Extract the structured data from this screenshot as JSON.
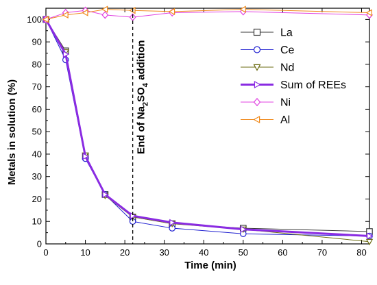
{
  "chart_data": {
    "type": "line",
    "xlabel": "Time (min)",
    "ylabel": "Metals in solution (%)",
    "xlim": [
      0,
      82
    ],
    "ylim": [
      0,
      105
    ],
    "xticks": [
      0,
      10,
      20,
      30,
      40,
      50,
      60,
      70,
      80
    ],
    "yticks": [
      0,
      10,
      20,
      30,
      40,
      50,
      60,
      70,
      80,
      90,
      100
    ],
    "grid": false,
    "legend_position": "top-right",
    "annotation": {
      "text_prefix": "End of Na",
      "sub1": "2",
      "text_mid": "SO",
      "sub2": "4",
      "text_suffix": " addition",
      "x": 22
    },
    "series": [
      {
        "name": "La",
        "color": "#3a3a3a",
        "marker": "square",
        "x": [
          0,
          5,
          10,
          15,
          22,
          32,
          50,
          82
        ],
        "y": [
          100,
          86,
          39,
          22,
          12,
          9,
          7,
          5.5
        ]
      },
      {
        "name": "Ce",
        "color": "#1f1fd0",
        "marker": "circle",
        "x": [
          0,
          5,
          10,
          15,
          22,
          32,
          50,
          82
        ],
        "y": [
          100,
          82,
          38,
          22,
          10,
          7,
          4.5,
          3.5
        ]
      },
      {
        "name": "Nd",
        "color": "#6b6b10",
        "marker": "triangle-down",
        "x": [
          0,
          5,
          10,
          15,
          22,
          32,
          50,
          82
        ],
        "y": [
          100,
          85.5,
          39.5,
          21.5,
          12,
          9,
          6.5,
          1
        ]
      },
      {
        "name": "Sum of REEs",
        "color": "#8a2be2",
        "marker": "triangle-right",
        "bold": true,
        "x": [
          0,
          5,
          10,
          15,
          22,
          32,
          50,
          82
        ],
        "y": [
          100,
          84.5,
          39,
          22,
          12.5,
          9.5,
          6.5,
          3.5
        ]
      },
      {
        "name": "Ni",
        "color": "#e040e0",
        "marker": "diamond",
        "x": [
          0,
          5,
          10,
          15,
          22,
          32,
          50,
          82
        ],
        "y": [
          100,
          103,
          104,
          102,
          101,
          103,
          103.5,
          102
        ]
      },
      {
        "name": "Al",
        "color": "#f08a1c",
        "marker": "triangle-left",
        "x": [
          0,
          5,
          10,
          15,
          22,
          32,
          50,
          82
        ],
        "y": [
          100,
          102,
          103,
          104.5,
          104,
          103.5,
          104.5,
          103
        ]
      }
    ]
  }
}
